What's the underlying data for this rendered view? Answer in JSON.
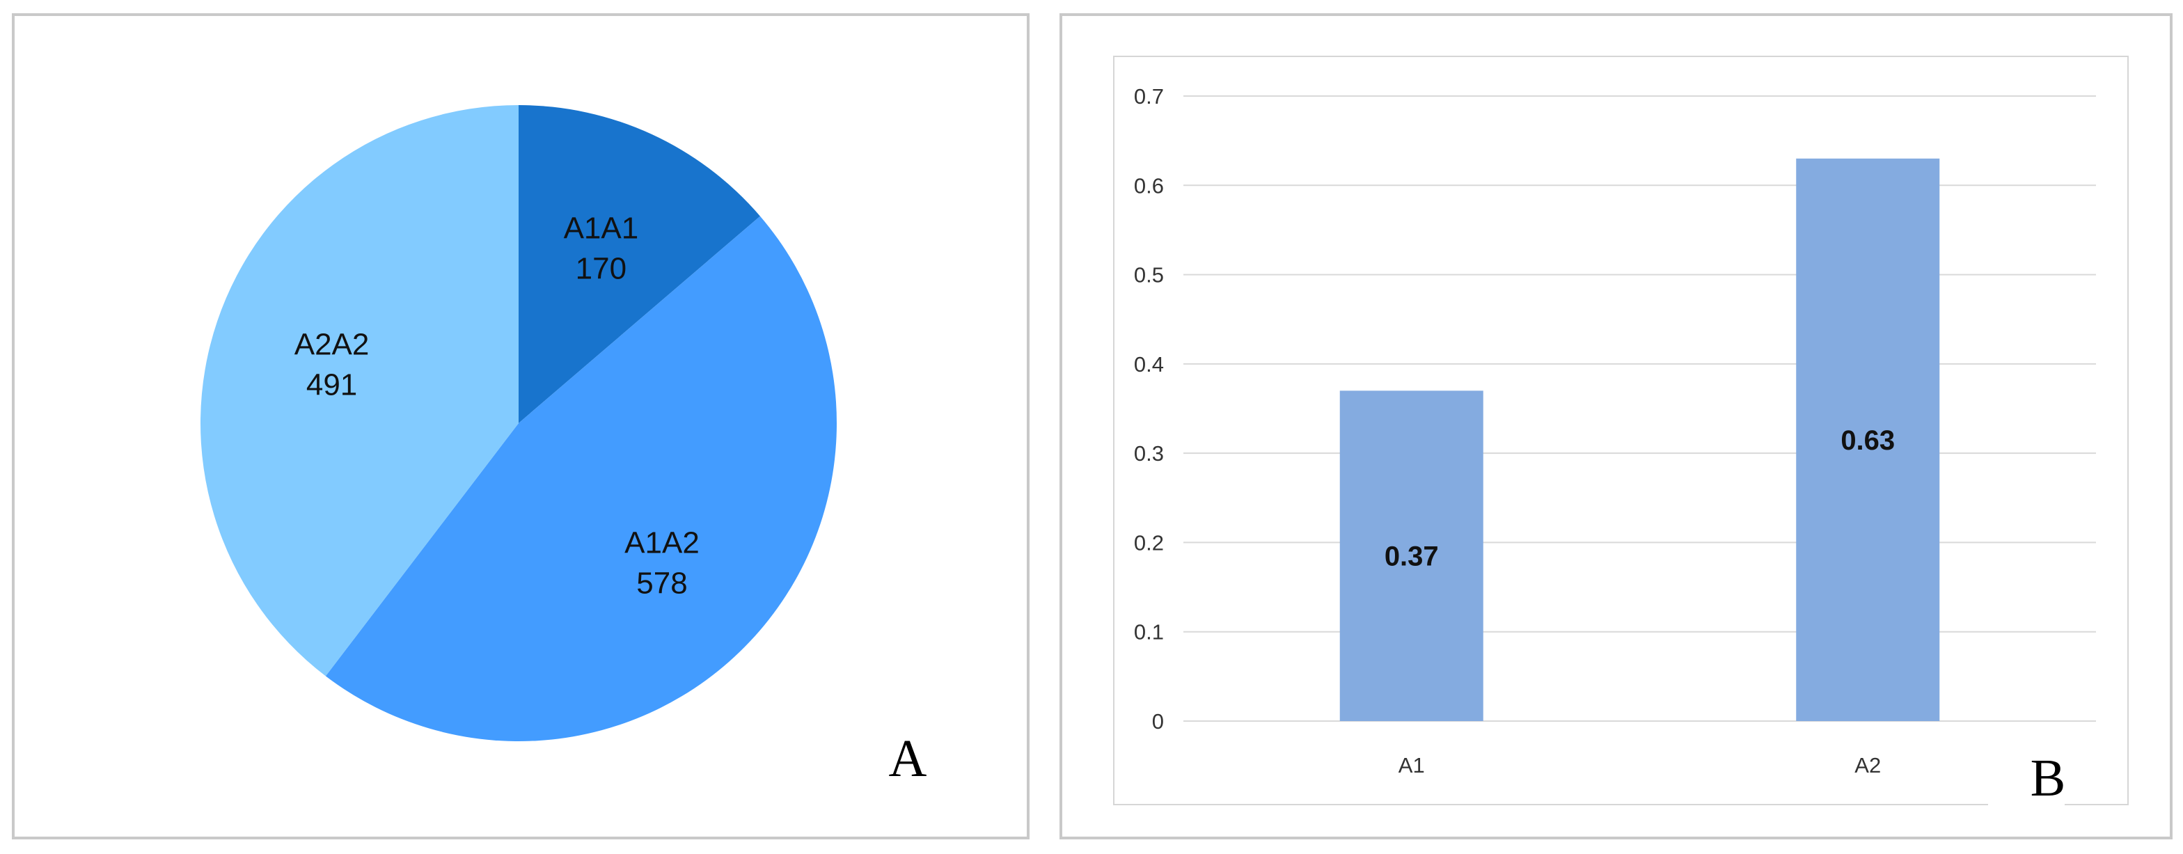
{
  "chart_data": [
    {
      "panel": "A",
      "type": "pie",
      "slices": [
        {
          "label": "A1A1",
          "value": 170,
          "color": "#1874CD"
        },
        {
          "label": "A1A2",
          "value": 578,
          "color": "#439CFF"
        },
        {
          "label": "A2A2",
          "value": 491,
          "color": "#82CBFF"
        }
      ]
    },
    {
      "panel": "B",
      "type": "bar",
      "categories": [
        "A1",
        "A2"
      ],
      "values": [
        0.37,
        0.63
      ],
      "value_labels": [
        "0.37",
        "0.63"
      ],
      "bar_color": "#84ABE0",
      "ylim": [
        0,
        0.7
      ],
      "yticks": [
        "0",
        "0.1",
        "0.2",
        "0.3",
        "0.4",
        "0.5",
        "0.6",
        "0.7"
      ],
      "grid": true
    }
  ]
}
